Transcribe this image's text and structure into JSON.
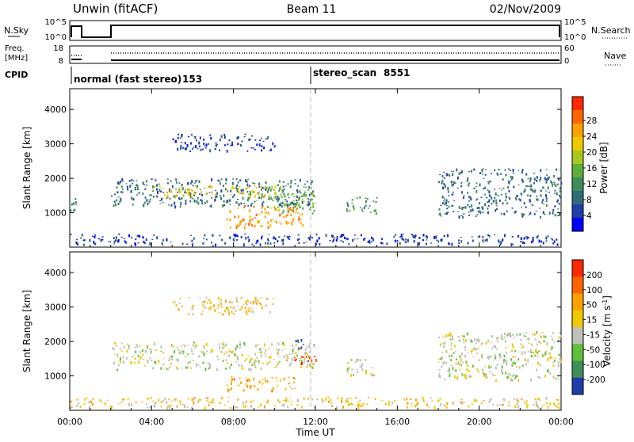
{
  "header": {
    "station": "Unwin (fitACF)",
    "beam": "Beam 11",
    "date": "02/Nov/2009"
  },
  "top_panels": {
    "nsky_label": "N.Sky",
    "nsky_ticks": [
      "10^5",
      "10^0"
    ],
    "nsearch_label": "N.Search",
    "nsearch_ticks": [
      "10^5",
      "10^0"
    ],
    "freq_label": "Freq.",
    "freq_unit": "[MHz]",
    "freq_ticks": [
      "18",
      "8"
    ],
    "nave_label": "Nave",
    "nave_ticks": [
      "60",
      "0"
    ],
    "cpid_label": "CPID",
    "cpid_segments": [
      {
        "name": "normal (fast stereo)",
        "id": "153",
        "start_hour": 0
      },
      {
        "name": "stereo_scan",
        "id": "8551",
        "start_hour": 12
      }
    ]
  },
  "time_axis": {
    "label": "Time UT",
    "ticks": [
      "00:00",
      "04:00",
      "08:00",
      "12:00",
      "16:00",
      "20:00",
      "00:00"
    ],
    "range_hours": [
      0,
      24
    ]
  },
  "chart_data": [
    {
      "type": "heatmap",
      "title": "Power",
      "xlabel": "Time UT",
      "ylabel": "Slant Range [km]",
      "ylim": [
        0,
        4600
      ],
      "yticks": [
        "1000",
        "2000",
        "3000",
        "4000"
      ],
      "colorbar": {
        "label": "Power [dB]",
        "ticks": [
          "4",
          "8",
          "12",
          "16",
          "20",
          "24",
          "28"
        ],
        "colors": [
          "#0000ff",
          "#1f3ea8",
          "#2f6b7a",
          "#3e8e5a",
          "#5fae3a",
          "#a8c81e",
          "#f0c800",
          "#ffa000",
          "#ff6400",
          "#ff2800"
        ]
      },
      "echo_regions": [
        {
          "t": [
            0.0,
            0.3
          ],
          "r": [
            900,
            1500
          ],
          "level": 2
        },
        {
          "t": [
            2.0,
            12.0
          ],
          "r": [
            1200,
            2000
          ],
          "level": 2
        },
        {
          "t": [
            4.0,
            10.5
          ],
          "r": [
            1500,
            1800
          ],
          "level": 6
        },
        {
          "t": [
            7.5,
            11.5
          ],
          "r": [
            600,
            1200
          ],
          "level": 7
        },
        {
          "t": [
            5.0,
            10.0
          ],
          "r": [
            2800,
            3300
          ],
          "level": 1
        },
        {
          "t": [
            9.5,
            12.0
          ],
          "r": [
            1000,
            1800
          ],
          "level": 4
        },
        {
          "t": [
            13.5,
            15.0
          ],
          "r": [
            1000,
            1500
          ],
          "level": 3
        },
        {
          "t": [
            18.0,
            24.0
          ],
          "r": [
            900,
            2300
          ],
          "level": 2
        },
        {
          "t": [
            0.0,
            24.0
          ],
          "r": [
            100,
            400
          ],
          "level": 1
        }
      ]
    },
    {
      "type": "heatmap",
      "title": "Velocity",
      "xlabel": "Time UT",
      "ylabel": "Slant Range [km]",
      "ylim": [
        0,
        4600
      ],
      "yticks": [
        "1000",
        "2000",
        "3000",
        "4000"
      ],
      "colorbar": {
        "label": "Velocity [m s^-1]",
        "ticks": [
          "200",
          "100",
          "50",
          "15",
          "-15",
          "-50",
          "-100",
          "-200"
        ],
        "colors": [
          "#1f3ea8",
          "#3e8e5a",
          "#5fbf3a",
          "#c0c0b8",
          "#f0c800",
          "#ffa000",
          "#ff6400",
          "#ff2800"
        ]
      },
      "echo_regions": [
        {
          "t": [
            2.0,
            12.0
          ],
          "r": [
            1200,
            2000
          ],
          "level": 3
        },
        {
          "t": [
            5.0,
            10.0
          ],
          "r": [
            2800,
            3300
          ],
          "level": 4
        },
        {
          "t": [
            7.5,
            11.0
          ],
          "r": [
            600,
            1000
          ],
          "level": 5
        },
        {
          "t": [
            10.5,
            12.0
          ],
          "r": [
            1300,
            1600
          ],
          "level": 7
        },
        {
          "t": [
            11.0,
            11.5
          ],
          "r": [
            1800,
            2100
          ],
          "level": 0
        },
        {
          "t": [
            13.5,
            15.0
          ],
          "r": [
            1000,
            1500
          ],
          "level": 3
        },
        {
          "t": [
            18.0,
            24.0
          ],
          "r": [
            900,
            2300
          ],
          "level": 3
        },
        {
          "t": [
            0.0,
            24.0
          ],
          "r": [
            100,
            400
          ],
          "level": 4
        }
      ]
    }
  ]
}
